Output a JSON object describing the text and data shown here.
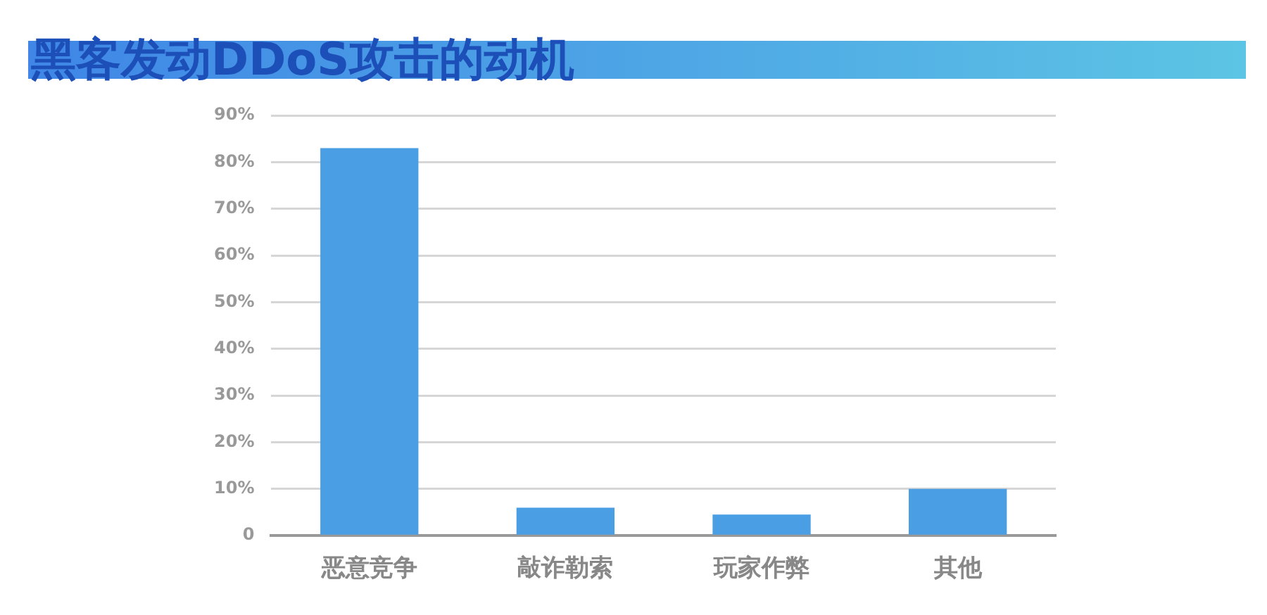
{
  "chart_data": {
    "type": "bar",
    "title": "黑客发动DDoS攻击的动机",
    "categories": [
      "恶意竞争",
      "敲诈勒索",
      "玩家作弊",
      "其他"
    ],
    "values": [
      83,
      6,
      4.5,
      10
    ],
    "color": "#4a9ee3",
    "ylim": [
      0,
      90
    ],
    "yticks": [
      {
        "value": 0,
        "label": "0"
      },
      {
        "value": 10,
        "label": "10%"
      },
      {
        "value": 20,
        "label": "20%"
      },
      {
        "value": 30,
        "label": "30%"
      },
      {
        "value": 40,
        "label": "40%"
      },
      {
        "value": 50,
        "label": "50%"
      },
      {
        "value": 60,
        "label": "60%"
      },
      {
        "value": 70,
        "label": "70%"
      },
      {
        "value": 80,
        "label": "80%"
      },
      {
        "value": 90,
        "label": "90%"
      }
    ],
    "grid": "y",
    "legend": false
  }
}
